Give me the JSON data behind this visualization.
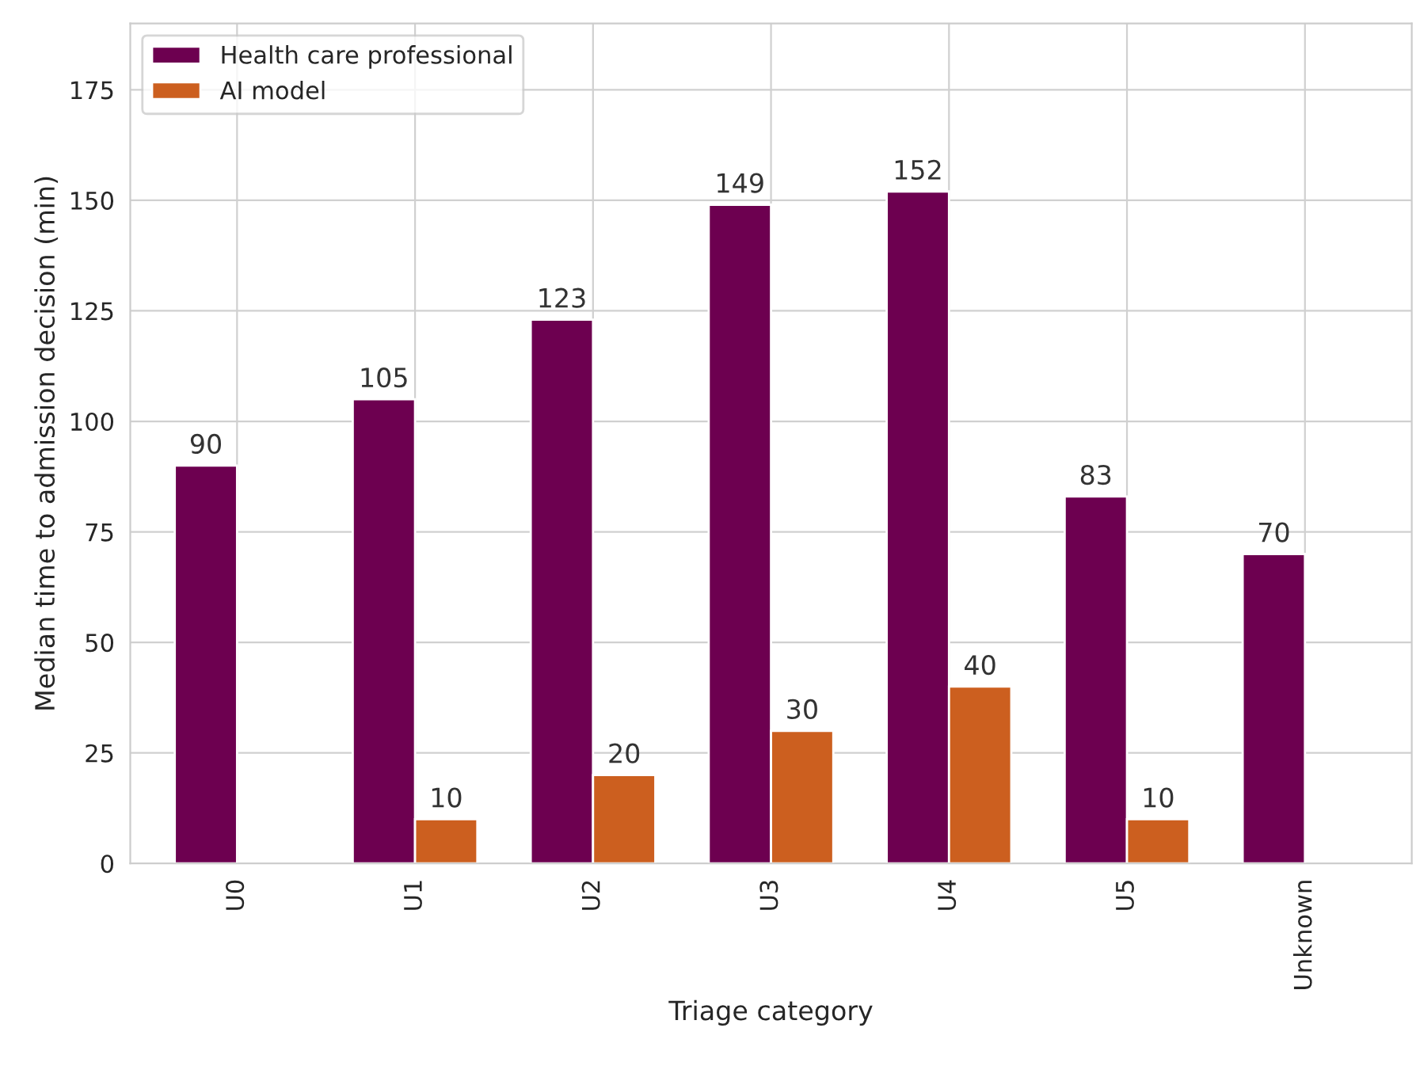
{
  "chart_data": {
    "type": "bar",
    "xlabel": "Triage category",
    "ylabel": "Median time to admission decision (min)",
    "categories": [
      "U0",
      "U1",
      "U2",
      "U3",
      "U4",
      "U5",
      "Unknown"
    ],
    "series": [
      {
        "name": "Health care professional",
        "color": "#6d0050",
        "values": [
          90,
          105,
          123,
          149,
          152,
          83,
          70
        ]
      },
      {
        "name": "AI model",
        "color": "#cc5f1f",
        "values": [
          null,
          10,
          20,
          30,
          40,
          10,
          null
        ]
      }
    ],
    "ylim": [
      0,
      190
    ],
    "yticks": [
      0,
      25,
      50,
      75,
      100,
      125,
      150,
      175
    ],
    "grid": true,
    "legend": "top left",
    "data_labels": true
  }
}
